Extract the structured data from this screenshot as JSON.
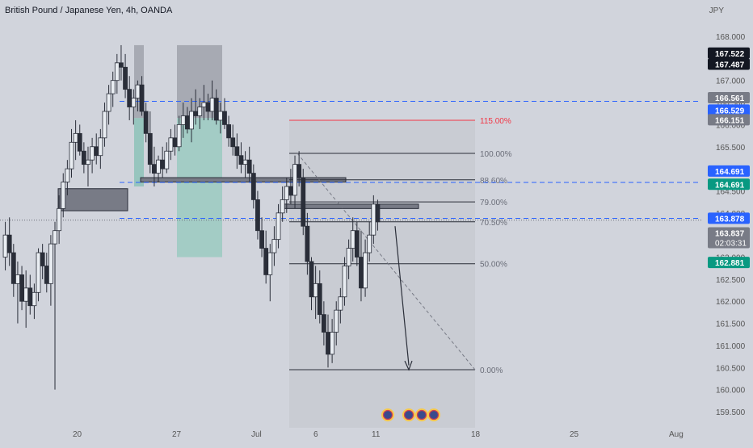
{
  "header": {
    "title": "British Pound / Japanese Yen, 4h, OANDA",
    "currency": "JPY"
  },
  "colors": {
    "background": "#d1d4dc",
    "up": "#e9edf2",
    "down": "#2a2e39",
    "hline": "#2962ff",
    "red": "#f23645",
    "teal": "#089981",
    "price_badge": "#131722"
  },
  "chart_data": {
    "type": "candlestick",
    "symbol": "GBPJPY",
    "timeframe": "4h",
    "yaxis": {
      "min": 159.2,
      "max": 168.3,
      "ticks": [
        "168.000",
        "167.500",
        "167.000",
        "166.500",
        "166.000",
        "165.500",
        "165.000",
        "164.500",
        "164.000",
        "163.500",
        "163.000",
        "162.500",
        "162.000",
        "161.500",
        "161.000",
        "160.500",
        "160.000",
        "159.500"
      ]
    },
    "xaxis": {
      "ticks": [
        "20",
        "27",
        "Jul",
        "6",
        "11",
        "18",
        "25",
        "Aug"
      ]
    },
    "price_labels": [
      {
        "value": "167.522",
        "price": 167.62,
        "style": "black"
      },
      {
        "value": "167.487",
        "price": 167.37,
        "style": "black"
      },
      {
        "value": "166.561",
        "price": 166.61,
        "style": "gray"
      },
      {
        "value": "166.529",
        "price": 166.33,
        "style": "blue"
      },
      {
        "value": "166.151",
        "price": 166.11,
        "style": "gray"
      },
      {
        "value": "164.691",
        "price": 164.95,
        "style": "blue"
      },
      {
        "value": "164.691",
        "price": 164.65,
        "style": "teal"
      },
      {
        "value": "163.878",
        "price": 163.88,
        "style": "blue"
      },
      {
        "value": "163.837",
        "price": 163.55,
        "style": "gray",
        "countdown": "02:03:31"
      },
      {
        "value": "162.881",
        "price": 162.88,
        "style": "teal"
      }
    ],
    "horizontal_lines": [
      {
        "price": 166.529,
        "style": "dashed",
        "color": "#2962ff"
      },
      {
        "price": 164.691,
        "style": "dashed",
        "color": "#2962ff"
      },
      {
        "price": 163.878,
        "style": "dashed",
        "color": "#2962ff"
      }
    ],
    "fibonacci": {
      "levels": [
        {
          "label": "115.00%",
          "price": 166.1,
          "color": "#f23645"
        },
        {
          "label": "100.00%",
          "price": 165.35
        },
        {
          "label": "88.60%",
          "price": 164.75
        },
        {
          "label": "79.00%",
          "price": 164.25
        },
        {
          "label": "70.50%",
          "price": 163.8
        },
        {
          "label": "50.00%",
          "price": 162.85
        },
        {
          "label": "0.00%",
          "price": 160.45
        }
      ]
    },
    "candles": [
      [
        163.0,
        163.8,
        162.7,
        163.5
      ],
      [
        163.5,
        163.9,
        162.8,
        163.1
      ],
      [
        163.1,
        163.3,
        162.1,
        162.4
      ],
      [
        162.4,
        162.9,
        161.5,
        162.6
      ],
      [
        162.6,
        162.8,
        161.8,
        162.0
      ],
      [
        162.0,
        162.7,
        161.4,
        162.3
      ],
      [
        162.3,
        162.6,
        161.7,
        161.9
      ],
      [
        161.9,
        162.4,
        161.6,
        162.2
      ],
      [
        162.2,
        163.2,
        162.0,
        163.1
      ],
      [
        163.1,
        163.3,
        162.5,
        162.8
      ],
      [
        162.8,
        163.1,
        162.2,
        162.4
      ],
      [
        162.4,
        163.5,
        161.9,
        163.3
      ],
      [
        163.3,
        163.8,
        160.0,
        163.6
      ],
      [
        163.6,
        164.4,
        163.3,
        164.1
      ],
      [
        164.1,
        164.9,
        163.9,
        164.7
      ],
      [
        164.7,
        165.2,
        164.4,
        165.0
      ],
      [
        165.0,
        165.9,
        164.8,
        165.6
      ],
      [
        165.6,
        166.1,
        165.2,
        165.8
      ],
      [
        165.8,
        166.0,
        165.3,
        165.4
      ],
      [
        165.4,
        165.6,
        164.9,
        165.1
      ],
      [
        165.1,
        165.5,
        164.6,
        165.2
      ],
      [
        165.2,
        165.7,
        164.9,
        165.5
      ],
      [
        165.5,
        165.8,
        165.1,
        165.3
      ],
      [
        165.3,
        165.9,
        165.0,
        165.7
      ],
      [
        165.7,
        166.5,
        165.5,
        166.3
      ],
      [
        166.3,
        166.9,
        166.0,
        166.7
      ],
      [
        166.7,
        167.2,
        166.4,
        167.0
      ],
      [
        167.0,
        167.6,
        166.7,
        167.4
      ],
      [
        167.4,
        167.8,
        167.0,
        167.3
      ],
      [
        167.3,
        167.6,
        166.6,
        166.8
      ],
      [
        166.8,
        167.1,
        166.1,
        166.4
      ],
      [
        166.4,
        166.8,
        166.0,
        166.6
      ],
      [
        166.6,
        167.0,
        166.3,
        166.9
      ],
      [
        166.9,
        167.1,
        166.2,
        166.3
      ],
      [
        166.3,
        166.5,
        165.6,
        165.8
      ],
      [
        165.8,
        166.3,
        164.9,
        165.1
      ],
      [
        165.1,
        165.5,
        164.6,
        164.9
      ],
      [
        164.9,
        165.3,
        164.7,
        165.2
      ],
      [
        165.2,
        165.5,
        164.8,
        165.0
      ],
      [
        165.0,
        165.6,
        164.9,
        165.4
      ],
      [
        165.4,
        165.9,
        165.2,
        165.7
      ],
      [
        165.7,
        166.0,
        165.3,
        165.5
      ],
      [
        165.5,
        166.2,
        165.4,
        166.0
      ],
      [
        166.0,
        166.5,
        165.7,
        166.2
      ],
      [
        166.2,
        166.4,
        165.8,
        165.9
      ],
      [
        165.9,
        166.6,
        165.6,
        166.3
      ],
      [
        166.3,
        166.8,
        166.0,
        166.2
      ],
      [
        166.2,
        166.6,
        165.9,
        166.4
      ],
      [
        166.4,
        166.9,
        166.1,
        166.5
      ],
      [
        166.5,
        166.7,
        166.1,
        166.3
      ],
      [
        166.3,
        167.0,
        166.1,
        166.6
      ],
      [
        166.6,
        166.8,
        166.0,
        166.1
      ],
      [
        166.1,
        166.5,
        165.8,
        166.3
      ],
      [
        166.3,
        166.6,
        165.9,
        166.0
      ],
      [
        166.0,
        166.2,
        165.5,
        165.7
      ],
      [
        165.7,
        166.0,
        165.3,
        165.5
      ],
      [
        165.5,
        165.8,
        165.0,
        165.3
      ],
      [
        165.3,
        165.6,
        164.9,
        165.1
      ],
      [
        165.1,
        165.4,
        164.8,
        165.2
      ],
      [
        165.2,
        165.5,
        164.7,
        164.9
      ],
      [
        164.9,
        165.1,
        164.1,
        164.3
      ],
      [
        164.3,
        164.5,
        163.4,
        163.6
      ],
      [
        163.6,
        163.9,
        163.0,
        163.2
      ],
      [
        163.2,
        163.6,
        162.4,
        162.6
      ],
      [
        162.6,
        163.3,
        162.0,
        163.1
      ],
      [
        163.1,
        163.7,
        162.8,
        163.4
      ],
      [
        163.4,
        164.2,
        163.2,
        164.0
      ],
      [
        164.0,
        164.6,
        163.8,
        164.3
      ],
      [
        164.3,
        164.8,
        164.0,
        164.6
      ],
      [
        164.6,
        165.0,
        164.2,
        164.4
      ],
      [
        164.4,
        165.3,
        164.1,
        165.1
      ],
      [
        165.1,
        165.4,
        164.6,
        164.8
      ],
      [
        164.8,
        165.0,
        163.5,
        163.7
      ],
      [
        163.7,
        164.0,
        162.6,
        162.9
      ],
      [
        162.9,
        163.0,
        161.8,
        162.1
      ],
      [
        162.1,
        162.8,
        161.6,
        162.4
      ],
      [
        162.4,
        162.7,
        161.5,
        161.7
      ],
      [
        161.7,
        162.0,
        161.0,
        161.3
      ],
      [
        161.3,
        161.7,
        160.5,
        160.8
      ],
      [
        160.8,
        161.6,
        160.6,
        161.3
      ],
      [
        161.3,
        162.0,
        161.0,
        161.8
      ],
      [
        161.8,
        162.3,
        161.5,
        162.1
      ],
      [
        162.1,
        163.0,
        161.9,
        162.8
      ],
      [
        162.8,
        163.4,
        162.5,
        163.2
      ],
      [
        163.2,
        163.9,
        162.9,
        163.6
      ],
      [
        163.6,
        163.8,
        162.8,
        163.0
      ],
      [
        163.0,
        163.6,
        162.0,
        162.3
      ],
      [
        162.3,
        163.4,
        162.1,
        163.1
      ],
      [
        163.1,
        163.8,
        162.9,
        163.5
      ],
      [
        163.5,
        164.4,
        163.3,
        164.2
      ],
      [
        164.2,
        164.3,
        163.6,
        163.8
      ]
    ]
  }
}
